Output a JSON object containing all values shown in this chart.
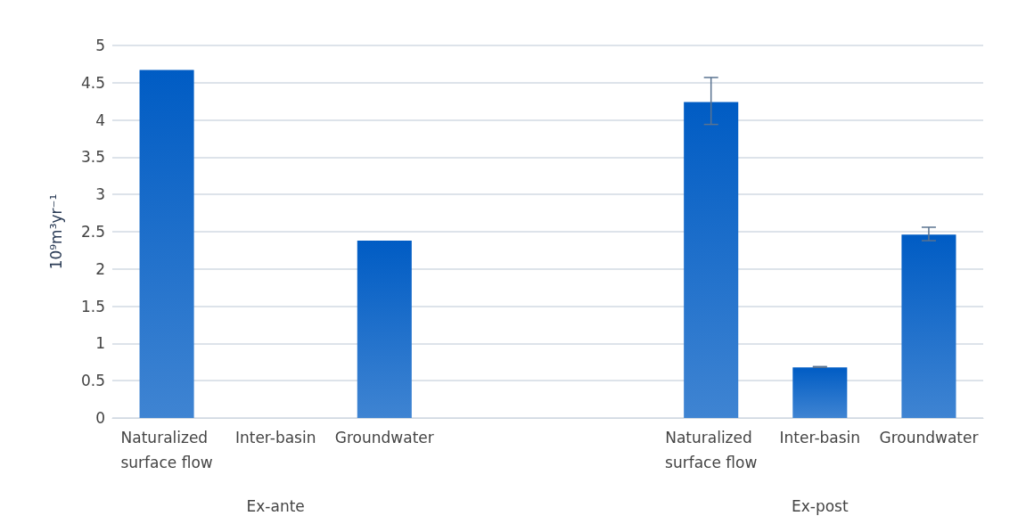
{
  "chart_data": {
    "type": "bar",
    "ylabel": "10⁹m³yr⁻¹",
    "categories": [
      "Naturalized surface flow",
      "Inter-basin",
      "Groundwater",
      null,
      null,
      "Naturalized surface flow",
      "Inter-basin",
      "Groundwater"
    ],
    "values": [
      4.67,
      0,
      2.38,
      null,
      null,
      4.24,
      0.68,
      2.46
    ],
    "errors": [
      null,
      null,
      null,
      null,
      null,
      [
        3.94,
        4.57
      ],
      [
        0.68,
        0.69
      ],
      [
        2.38,
        2.56
      ]
    ],
    "color": "#005cc4",
    "ylim": [
      0,
      5
    ],
    "yticks": [
      0,
      0.5,
      1,
      1.5,
      2,
      2.5,
      3,
      3.5,
      4,
      4.5,
      5
    ],
    "grid": "y",
    "annotations": [
      "Ex-ante",
      "Ex-post"
    ]
  }
}
